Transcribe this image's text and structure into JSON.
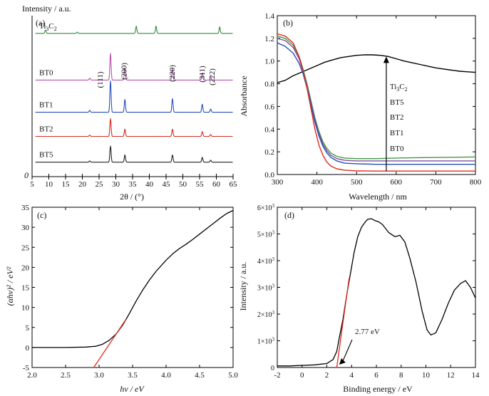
{
  "chart_data": [
    {
      "panel": "(a)",
      "type": "line",
      "title": "",
      "xlabel": "2θ / (°)",
      "ylabel": "Intensity / a.u.",
      "xlim": [
        5,
        65
      ],
      "xticks": [
        5,
        10,
        15,
        20,
        25,
        30,
        35,
        40,
        45,
        50,
        55,
        60,
        65
      ],
      "origin_label": "0",
      "series": [
        {
          "name": "Ti3C2",
          "color": "#2e8b3a",
          "baseline": 0.89,
          "peaks": [
            [
              9.0,
              0.02
            ],
            [
              18.5,
              0.008
            ],
            [
              36.1,
              0.045
            ],
            [
              42.0,
              0.045
            ],
            [
              61.0,
              0.04
            ]
          ]
        },
        {
          "name": "BT0",
          "color": "#b84fb0",
          "baseline": 0.6,
          "peaks": [
            [
              22.2,
              0.012
            ],
            [
              28.4,
              0.165
            ],
            [
              32.7,
              0.075
            ],
            [
              46.9,
              0.07
            ],
            [
              55.8,
              0.045
            ],
            [
              58.3,
              0.02
            ]
          ]
        },
        {
          "name": "BT1",
          "color": "#2a4fb8",
          "baseline": 0.4,
          "peaks": [
            [
              22.2,
              0.012
            ],
            [
              28.4,
              0.195
            ],
            [
              32.7,
              0.08
            ],
            [
              46.9,
              0.085
            ],
            [
              55.8,
              0.05
            ],
            [
              58.3,
              0.02
            ]
          ]
        },
        {
          "name": "BT2",
          "color": "#d42a1e",
          "baseline": 0.25,
          "peaks": [
            [
              22.2,
              0.008
            ],
            [
              28.4,
              0.11
            ],
            [
              32.7,
              0.045
            ],
            [
              46.9,
              0.045
            ],
            [
              55.8,
              0.03
            ],
            [
              58.3,
              0.012
            ]
          ]
        },
        {
          "name": "BT5",
          "color": "#222222",
          "baseline": 0.09,
          "peaks": [
            [
              22.2,
              0.008
            ],
            [
              28.4,
              0.1
            ],
            [
              32.7,
              0.045
            ],
            [
              46.9,
              0.045
            ],
            [
              55.8,
              0.03
            ],
            [
              58.3,
              0.012
            ]
          ]
        }
      ],
      "annotations": [
        {
          "text": "(111)",
          "x": 25.4
        },
        {
          "text": "(200)",
          "x": 32.5
        },
        {
          "text": "(220)",
          "x": 46.9
        },
        {
          "text": "(311)",
          "x": 55.9
        },
        {
          "text": "(222)",
          "x": 58.8
        }
      ]
    },
    {
      "panel": "(b)",
      "type": "line",
      "xlabel": "Wavelength / nm",
      "ylabel": "Absorbance",
      "xlim": [
        300,
        800
      ],
      "ylim": [
        0,
        1.4
      ],
      "xticks": [
        300,
        400,
        500,
        600,
        700,
        800
      ],
      "yticks": [
        0.0,
        0.2,
        0.4,
        0.6,
        0.8,
        1.0,
        1.2,
        1.4
      ],
      "series": [
        {
          "name": "Ti3C2",
          "color": "#000000",
          "points": [
            [
              300,
              0.81
            ],
            [
              320,
              0.83
            ],
            [
              340,
              0.87
            ],
            [
              360,
              0.9
            ],
            [
              380,
              0.93
            ],
            [
              400,
              0.96
            ],
            [
              420,
              0.99
            ],
            [
              440,
              1.01
            ],
            [
              460,
              1.03
            ],
            [
              480,
              1.04
            ],
            [
              500,
              1.05
            ],
            [
              520,
              1.055
            ],
            [
              540,
              1.055
            ],
            [
              560,
              1.05
            ],
            [
              580,
              1.04
            ],
            [
              600,
              1.02
            ],
            [
              620,
              1.0
            ],
            [
              640,
              0.985
            ],
            [
              660,
              0.97
            ],
            [
              680,
              0.955
            ],
            [
              700,
              0.94
            ],
            [
              720,
              0.93
            ],
            [
              740,
              0.92
            ],
            [
              760,
              0.91
            ],
            [
              780,
              0.905
            ],
            [
              800,
              0.9
            ]
          ]
        },
        {
          "name": "BT5",
          "color": "#3f9b45",
          "points": [
            [
              300,
              1.22
            ],
            [
              320,
              1.2
            ],
            [
              340,
              1.14
            ],
            [
              355,
              1.04
            ],
            [
              365,
              0.93
            ],
            [
              375,
              0.8
            ],
            [
              385,
              0.65
            ],
            [
              395,
              0.5
            ],
            [
              405,
              0.38
            ],
            [
              415,
              0.29
            ],
            [
              425,
              0.23
            ],
            [
              435,
              0.19
            ],
            [
              450,
              0.16
            ],
            [
              470,
              0.145
            ],
            [
              500,
              0.14
            ],
            [
              550,
              0.14
            ],
            [
              600,
              0.145
            ],
            [
              650,
              0.148
            ],
            [
              700,
              0.15
            ],
            [
              750,
              0.152
            ],
            [
              800,
              0.155
            ]
          ]
        },
        {
          "name": "BT2",
          "color": "#7e4f9a",
          "points": [
            [
              300,
              1.2
            ],
            [
              320,
              1.18
            ],
            [
              340,
              1.12
            ],
            [
              355,
              1.02
            ],
            [
              365,
              0.91
            ],
            [
              375,
              0.78
            ],
            [
              385,
              0.63
            ],
            [
              395,
              0.48
            ],
            [
              405,
              0.36
            ],
            [
              415,
              0.27
            ],
            [
              425,
              0.21
            ],
            [
              435,
              0.17
            ],
            [
              450,
              0.14
            ],
            [
              470,
              0.125
            ],
            [
              500,
              0.12
            ],
            [
              550,
              0.12
            ],
            [
              600,
              0.12
            ],
            [
              650,
              0.12
            ],
            [
              700,
              0.12
            ],
            [
              750,
              0.12
            ],
            [
              800,
              0.12
            ]
          ]
        },
        {
          "name": "BT1",
          "color": "#2a4fb8",
          "points": [
            [
              300,
              1.16
            ],
            [
              320,
              1.13
            ],
            [
              340,
              1.07
            ],
            [
              355,
              0.98
            ],
            [
              365,
              0.89
            ],
            [
              375,
              0.76
            ],
            [
              385,
              0.61
            ],
            [
              395,
              0.46
            ],
            [
              405,
              0.34
            ],
            [
              415,
              0.25
            ],
            [
              425,
              0.19
            ],
            [
              435,
              0.15
            ],
            [
              450,
              0.12
            ],
            [
              470,
              0.1
            ],
            [
              500,
              0.095
            ],
            [
              550,
              0.09
            ],
            [
              600,
              0.09
            ],
            [
              650,
              0.09
            ],
            [
              700,
              0.09
            ],
            [
              750,
              0.09
            ],
            [
              800,
              0.09
            ]
          ]
        },
        {
          "name": "BT0",
          "color": "#e12a1e",
          "points": [
            [
              300,
              1.24
            ],
            [
              320,
              1.22
            ],
            [
              340,
              1.16
            ],
            [
              355,
              1.04
            ],
            [
              365,
              0.92
            ],
            [
              375,
              0.76
            ],
            [
              385,
              0.58
            ],
            [
              395,
              0.4
            ],
            [
              405,
              0.26
            ],
            [
              415,
              0.17
            ],
            [
              425,
              0.11
            ],
            [
              435,
              0.075
            ],
            [
              450,
              0.05
            ],
            [
              470,
              0.038
            ],
            [
              500,
              0.032
            ],
            [
              550,
              0.03
            ],
            [
              600,
              0.03
            ],
            [
              650,
              0.03
            ],
            [
              700,
              0.03
            ],
            [
              750,
              0.03
            ],
            [
              800,
              0.03
            ]
          ]
        }
      ],
      "arrow": {
        "x": 575,
        "from": 0.03,
        "to": 1.04
      },
      "legend_order": [
        "Ti3C2",
        "BT5",
        "BT2",
        "BT1",
        "BT0"
      ]
    },
    {
      "panel": "(c)",
      "type": "line",
      "xlabel": "hν / eV",
      "ylabel": "(αhν)² / eV²",
      "xlim": [
        2.0,
        5.0
      ],
      "ylim": [
        -5,
        35
      ],
      "xticks": [
        2.0,
        2.5,
        3.0,
        3.5,
        4.0,
        4.5,
        5.0
      ],
      "yticks": [
        -5,
        0,
        5,
        10,
        15,
        20,
        25,
        30,
        35
      ],
      "series": [
        {
          "name": "curve",
          "color": "#000000",
          "points": [
            [
              2.0,
              0.0
            ],
            [
              2.5,
              0.0
            ],
            [
              2.8,
              0.1
            ],
            [
              2.95,
              0.3
            ],
            [
              3.05,
              0.8
            ],
            [
              3.15,
              1.8
            ],
            [
              3.25,
              3.3
            ],
            [
              3.35,
              5.5
            ],
            [
              3.45,
              8.4
            ],
            [
              3.55,
              11.5
            ],
            [
              3.65,
              14.3
            ],
            [
              3.75,
              16.8
            ],
            [
              3.85,
              19.0
            ],
            [
              4.0,
              21.8
            ],
            [
              4.1,
              23.4
            ],
            [
              4.2,
              24.7
            ],
            [
              4.3,
              25.8
            ],
            [
              4.4,
              27.0
            ],
            [
              4.5,
              28.3
            ],
            [
              4.6,
              29.6
            ],
            [
              4.7,
              30.9
            ],
            [
              4.8,
              32.2
            ],
            [
              4.9,
              33.4
            ],
            [
              5.0,
              34.2
            ]
          ]
        },
        {
          "name": "fit",
          "color": "#e12a1e",
          "points": [
            [
              2.92,
              -5.0
            ],
            [
              3.4,
              7.0
            ]
          ]
        }
      ]
    },
    {
      "panel": "(d)",
      "type": "line",
      "xlabel": "Binding energy / eV",
      "ylabel": "Intensity / a.u.",
      "xlim": [
        -2,
        14
      ],
      "ylim": [
        0,
        6000
      ],
      "xticks": [
        -2,
        0,
        2,
        4,
        6,
        8,
        10,
        12,
        14
      ],
      "yticks": [
        0,
        1000,
        2000,
        3000,
        4000,
        5000,
        6000
      ],
      "ytick_labels": [
        "0",
        "1×10³",
        "2×10³",
        "3×10³",
        "4×10³",
        "5×10³",
        "6×10³"
      ],
      "series": [
        {
          "name": "curve",
          "color": "#000000",
          "points": [
            [
              -2,
              60
            ],
            [
              -1,
              60
            ],
            [
              0,
              80
            ],
            [
              1,
              100
            ],
            [
              2,
              150
            ],
            [
              2.5,
              300
            ],
            [
              2.8,
              600
            ],
            [
              3.0,
              1100
            ],
            [
              3.3,
              1800
            ],
            [
              3.6,
              2700
            ],
            [
              3.9,
              3500
            ],
            [
              4.2,
              4300
            ],
            [
              4.5,
              4900
            ],
            [
              4.8,
              5250
            ],
            [
              5.1,
              5450
            ],
            [
              5.3,
              5550
            ],
            [
              5.6,
              5570
            ],
            [
              5.9,
              5500
            ],
            [
              6.2,
              5450
            ],
            [
              6.5,
              5350
            ],
            [
              7.0,
              5050
            ],
            [
              7.5,
              4900
            ],
            [
              7.9,
              4950
            ],
            [
              8.3,
              4700
            ],
            [
              8.7,
              4100
            ],
            [
              9.2,
              3200
            ],
            [
              9.7,
              2100
            ],
            [
              10.1,
              1400
            ],
            [
              10.4,
              1220
            ],
            [
              10.8,
              1300
            ],
            [
              11.3,
              1800
            ],
            [
              11.8,
              2400
            ],
            [
              12.3,
              2900
            ],
            [
              12.8,
              3150
            ],
            [
              13.2,
              3250
            ],
            [
              13.6,
              3000
            ],
            [
              14.0,
              2600
            ]
          ]
        },
        {
          "name": "fit",
          "color": "#e12a1e",
          "points": [
            [
              2.8,
              0
            ],
            [
              3.8,
              3350
            ]
          ]
        }
      ],
      "annotation": {
        "text": "2.77 eV",
        "point": [
          2.77,
          0
        ],
        "text_at": [
          4.5,
          1200
        ]
      }
    }
  ]
}
